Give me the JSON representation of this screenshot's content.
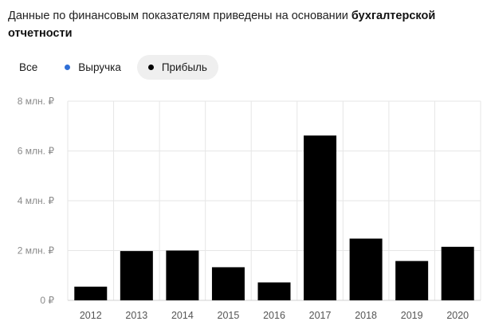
{
  "note": {
    "text": "Данные по финансовым показателям приведены на основании ",
    "bold": "бухгалтерской отчетности"
  },
  "filters": [
    {
      "label": "Все",
      "active": false,
      "dot_color": null
    },
    {
      "label": "Выручка",
      "active": false,
      "dot_color": "#2f6fd6"
    },
    {
      "label": "Прибыль",
      "active": true,
      "dot_color": "#000000"
    }
  ],
  "chart_data": {
    "type": "bar",
    "categories": [
      "2012",
      "2013",
      "2014",
      "2015",
      "2016",
      "2017",
      "2018",
      "2019",
      "2020"
    ],
    "series": [
      {
        "name": "Прибыль",
        "color": "#000000",
        "values": [
          0.55,
          1.98,
          2.0,
          1.33,
          0.72,
          6.62,
          2.48,
          1.58,
          2.15
        ]
      }
    ],
    "y_unit": "млн. ₽",
    "ylim": [
      0,
      8
    ],
    "y_ticks": [
      {
        "value": 0,
        "label": "0 ₽"
      },
      {
        "value": 2,
        "label": "2 млн. ₽"
      },
      {
        "value": 4,
        "label": "4 млн. ₽"
      },
      {
        "value": 6,
        "label": "6 млн. ₽"
      },
      {
        "value": 8,
        "label": "8 млн. ₽"
      }
    ],
    "grid": true,
    "legend": "top-left",
    "title": "",
    "xlabel": "",
    "ylabel": ""
  }
}
